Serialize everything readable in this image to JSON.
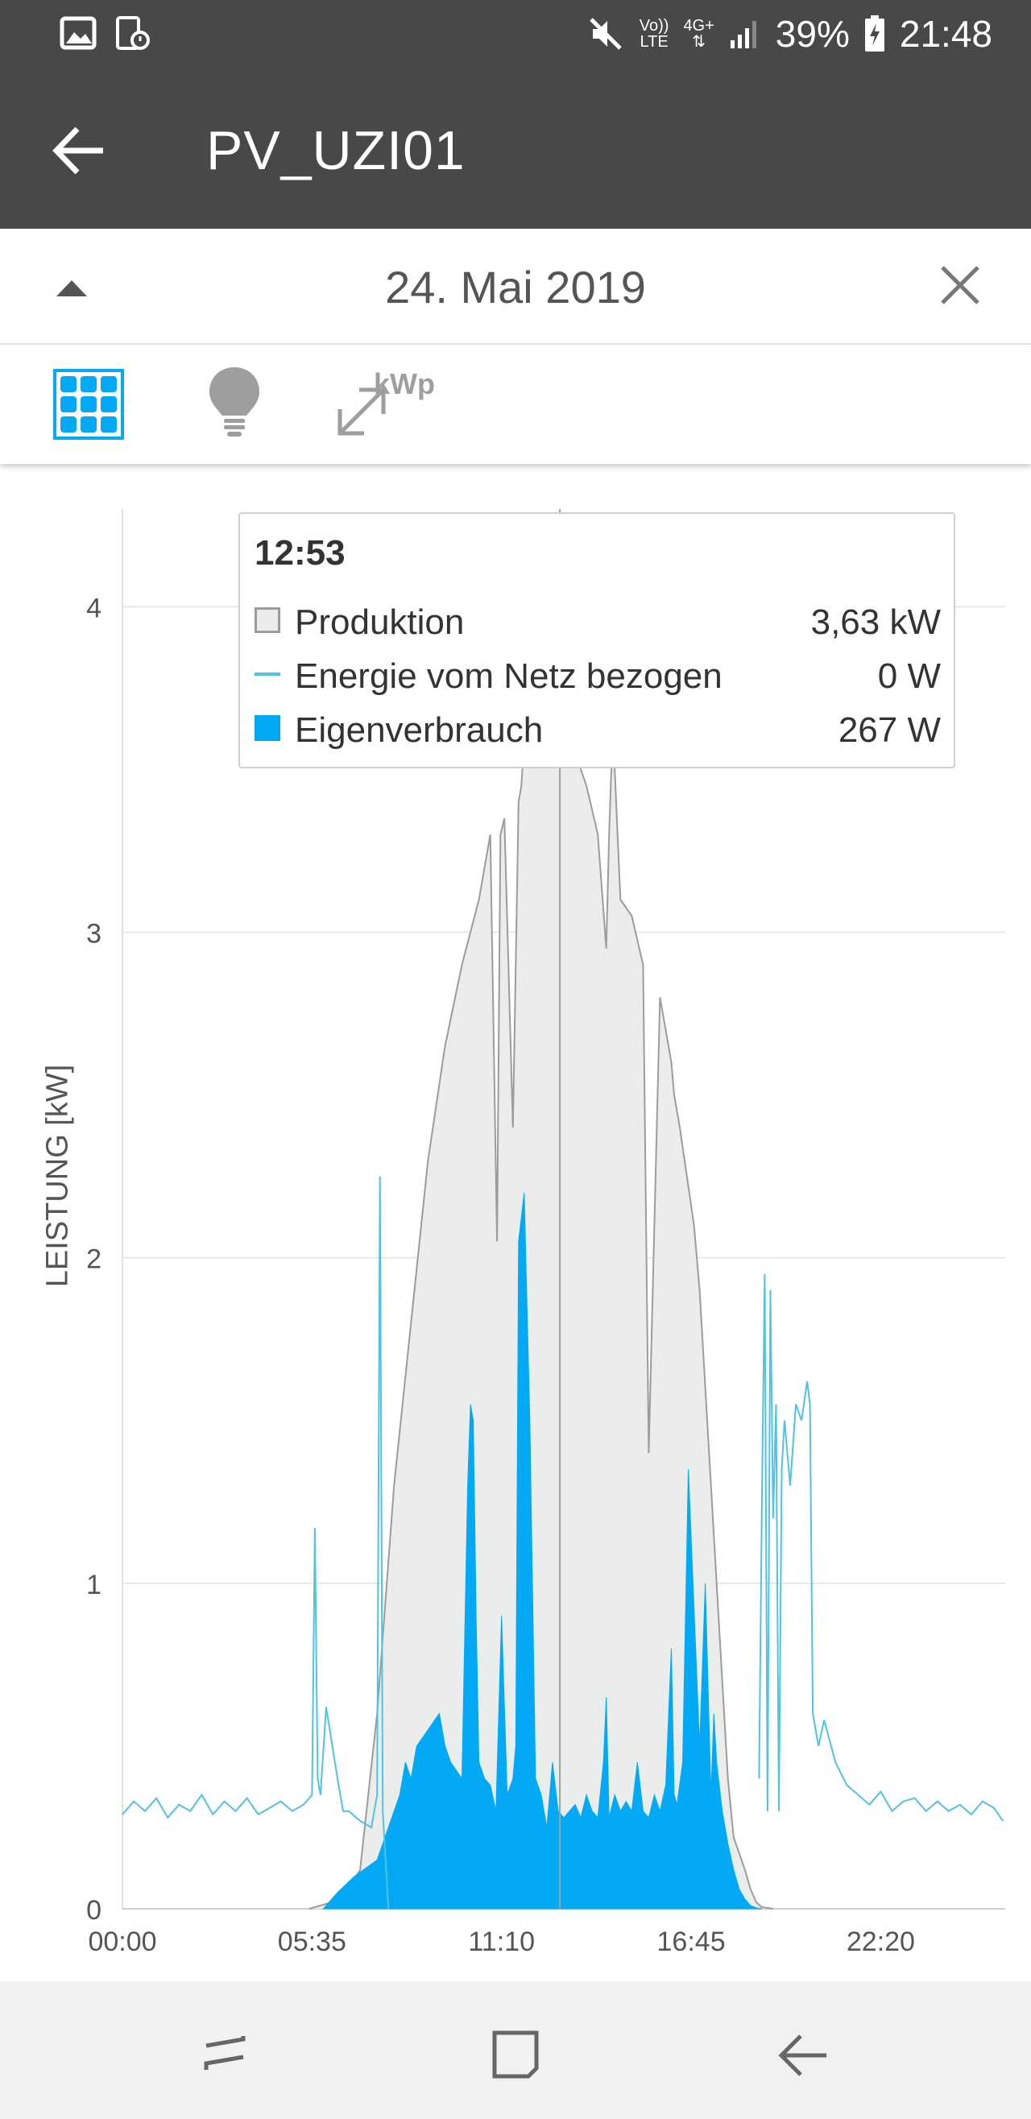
{
  "status_bar": {
    "battery": "39%",
    "time": "21:48",
    "volte_top": "Vo))",
    "volte_bottom": "LTE",
    "network": "4G+"
  },
  "app_bar": {
    "title": "PV_UZI01"
  },
  "date_bar": {
    "date": "24. Mai 2019"
  },
  "toggles": {
    "kwp_label": "kWp"
  },
  "chart_data": {
    "type": "area",
    "ylabel": "LEISTUNG [kW]",
    "ylim": [
      0,
      4.3
    ],
    "yticks": [
      0,
      1,
      2,
      3,
      4
    ],
    "xlim": [
      0,
      1560
    ],
    "xtick_labels": [
      "00:00",
      "05:35",
      "11:10",
      "16:45",
      "22:20"
    ],
    "xtick_minutes": [
      0,
      335,
      670,
      1005,
      1340
    ],
    "cursor_minute": 773,
    "grid": true,
    "colors": {
      "produktion_fill": "#ebecec",
      "produktion_line": "#9c9c9c",
      "netz": "#4fc3e6",
      "eigen": "#03a9f4",
      "cursor": "#a0a0a0"
    },
    "series": [
      {
        "name": "Produktion",
        "x": [
          330,
          390,
          420,
          450,
          480,
          510,
          540,
          570,
          600,
          630,
          650,
          662,
          668,
          675,
          690,
          700,
          705,
          710,
          720,
          730,
          740,
          745,
          750,
          760,
          780,
          800,
          820,
          840,
          855,
          860,
          865,
          870,
          875,
          880,
          900,
          920,
          930,
          950,
          970,
          975,
          985,
          1010,
          1020,
          1040,
          1060,
          1070,
          1080,
          1100,
          1110,
          1120,
          1130,
          1150
        ],
        "values": [
          0,
          0.03,
          0.12,
          0.6,
          1.3,
          1.8,
          2.3,
          2.65,
          2.9,
          3.1,
          3.3,
          2.05,
          3.3,
          3.35,
          2.4,
          3.4,
          3.45,
          3.6,
          3.65,
          3.65,
          3.65,
          3.6,
          3.63,
          3.65,
          3.6,
          3.55,
          3.45,
          3.3,
          2.95,
          3.3,
          3.55,
          3.5,
          3.3,
          3.1,
          3.05,
          2.9,
          1.4,
          2.8,
          2.6,
          2.5,
          2.4,
          2.1,
          1.9,
          1.3,
          0.7,
          0.4,
          0.22,
          0.12,
          0.06,
          0.02,
          0.005,
          0
        ]
      },
      {
        "name": "Energie vom Netz bezogen",
        "x": [
          0,
          20,
          40,
          60,
          80,
          100,
          120,
          140,
          160,
          180,
          200,
          220,
          240,
          260,
          280,
          300,
          320,
          335,
          340,
          345,
          350,
          360,
          380,
          390,
          400,
          420,
          440,
          450,
          455,
          460,
          470,
          480,
          500,
          1120,
          1125,
          1130,
          1135,
          1140,
          1145,
          1150,
          1155,
          1160,
          1165,
          1170,
          1180,
          1190,
          1200,
          1210,
          1215,
          1220,
          1230,
          1240,
          1260,
          1280,
          1300,
          1320,
          1340,
          1360,
          1380,
          1400,
          1420,
          1440,
          1460,
          1480,
          1500,
          1520,
          1540,
          1556
        ],
        "values": [
          0.29,
          0.33,
          0.3,
          0.34,
          0.28,
          0.32,
          0.3,
          0.35,
          0.29,
          0.33,
          0.3,
          0.34,
          0.29,
          0.31,
          0.33,
          0.3,
          0.32,
          0.35,
          1.17,
          0.4,
          0.35,
          0.62,
          0.4,
          0.3,
          0.3,
          0.27,
          0.25,
          0.35,
          2.25,
          0.3,
          0,
          0,
          0,
          0,
          0.4,
          1.25,
          1.95,
          0.3,
          1.9,
          1.2,
          1.55,
          0.3,
          1.35,
          1.5,
          1.3,
          1.55,
          1.5,
          1.62,
          1.55,
          0.6,
          0.5,
          0.58,
          0.45,
          0.38,
          0.35,
          0.32,
          0.36,
          0.3,
          0.33,
          0.34,
          0.3,
          0.33,
          0.3,
          0.32,
          0.29,
          0.33,
          0.31,
          0.27
        ]
      },
      {
        "name": "Eigenverbrauch",
        "x": [
          355,
          380,
          410,
          450,
          470,
          490,
          500,
          510,
          520,
          540,
          560,
          570,
          580,
          600,
          610,
          615,
          620,
          625,
          630,
          640,
          650,
          660,
          670,
          680,
          690,
          695,
          700,
          710,
          720,
          730,
          740,
          750,
          760,
          770,
          780,
          790,
          800,
          810,
          820,
          830,
          840,
          850,
          855,
          860,
          870,
          880,
          890,
          900,
          910,
          920,
          930,
          940,
          950,
          960,
          970,
          975,
          980,
          990,
          1000,
          1020,
          1030,
          1040,
          1045,
          1050,
          1060,
          1070,
          1080,
          1090,
          1100,
          1110,
          1120,
          1130
        ],
        "values": [
          0,
          0.05,
          0.1,
          0.15,
          0.25,
          0.35,
          0.45,
          0.4,
          0.5,
          0.55,
          0.6,
          0.5,
          0.45,
          0.4,
          1.3,
          1.55,
          1.5,
          0.9,
          0.45,
          0.4,
          0.38,
          0.3,
          0.9,
          0.35,
          0.4,
          0.5,
          2.05,
          2.2,
          1.5,
          0.4,
          0.35,
          0.25,
          0.45,
          0.3,
          0.28,
          0.3,
          0.32,
          0.28,
          0.35,
          0.3,
          0.28,
          0.45,
          0.65,
          0.28,
          0.35,
          0.3,
          0.33,
          0.3,
          0.45,
          0.3,
          0.28,
          0.35,
          0.3,
          0.38,
          0.8,
          0.35,
          0.32,
          0.45,
          1.35,
          0.5,
          1.0,
          0.35,
          0.6,
          0.45,
          0.3,
          0.2,
          0.12,
          0.06,
          0.03,
          0.01,
          0.003,
          0
        ]
      }
    ]
  },
  "tooltip": {
    "time": "12:53",
    "rows": [
      {
        "label": "Produktion",
        "value": "3,63 kW"
      },
      {
        "label": "Energie vom Netz bezogen",
        "value": "0 W"
      },
      {
        "label": "Eigenverbrauch",
        "value": "267 W"
      }
    ]
  }
}
